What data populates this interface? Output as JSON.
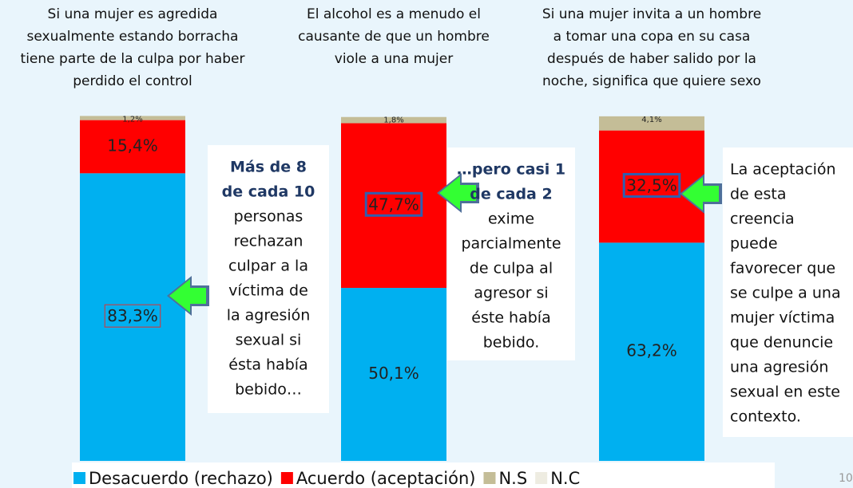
{
  "chart_data": {
    "type": "stacked_bar",
    "categories": [
      [
        "Si una mujer es agredida",
        "sexualmente estando borracha",
        "tiene parte de la culpa por haber",
        "perdido el control"
      ],
      [
        "El alcohol es a menudo el",
        "causante de que un hombre",
        "viole a una mujer"
      ],
      [
        "Si una mujer invita a un hombre",
        "a tomar una copa en su casa",
        "después de haber salido por la",
        "noche, significa que quiere sexo"
      ]
    ],
    "ylim": [
      0,
      100
    ],
    "series": [
      {
        "name": "Desacuerdo (rechazo)",
        "color": "#00b0f0",
        "values": [
          83.3,
          50.1,
          63.2
        ],
        "value_labels": [
          "83,3%",
          "50,1%",
          "63,2%"
        ]
      },
      {
        "name": "Acuerdo (aceptación)",
        "color": "#ff0000",
        "values": [
          15.4,
          47.7,
          32.5
        ],
        "value_labels": [
          "15,4%",
          "47,7%",
          "32,5%"
        ]
      },
      {
        "name": "N.S",
        "color": "#c4bd97",
        "values": [
          1.2,
          1.8,
          4.1
        ],
        "value_labels": [
          "1,2%",
          "1,8%",
          "4,1%"
        ]
      },
      {
        "name": "N.C",
        "color": "#eeece1",
        "values": [
          null,
          null,
          null
        ]
      }
    ],
    "boxed_labels": [
      {
        "series": 0,
        "index": 0,
        "color": "#e03030"
      },
      {
        "series": 1,
        "index": 1,
        "color": "#2f5fb0"
      },
      {
        "series": 1,
        "index": 2,
        "color": "#2f5fb0"
      }
    ],
    "annotations": [
      {
        "bold_lines": [
          "Más de 8",
          "de cada 10"
        ],
        "lines": [
          "personas",
          "rechazan",
          "culpar a la",
          "víctima de",
          "la agresión",
          "sexual si",
          "ésta había",
          "bebido…"
        ]
      },
      {
        "bold_lines": [
          "…pero casi 1",
          "de cada 2"
        ],
        "lines": [
          "exime",
          "parcialmente",
          "de culpa al",
          "agresor si",
          "éste había",
          "bebido."
        ]
      },
      {
        "bold_lines": [],
        "lines": [
          "La aceptación",
          "de esta",
          "creencia",
          "puede",
          "favorecer que",
          "se culpe a una",
          "mujer víctima",
          "que denuncie",
          "una agresión",
          "sexual en este",
          "contexto."
        ]
      }
    ],
    "page_number": "10"
  }
}
